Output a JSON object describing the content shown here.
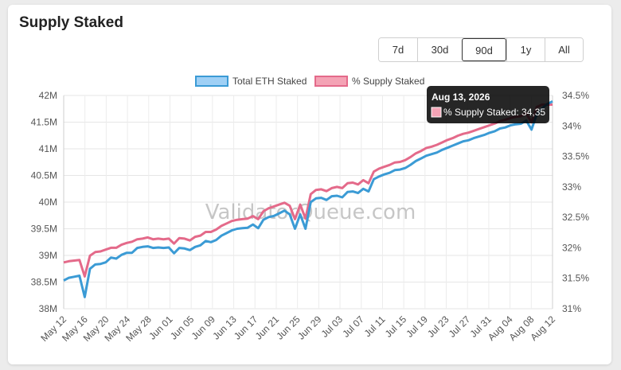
{
  "title": "Supply Staked",
  "range_buttons": [
    {
      "label": "7d",
      "active": false
    },
    {
      "label": "30d",
      "active": false
    },
    {
      "label": "90d",
      "active": true
    },
    {
      "label": "1y",
      "active": false
    },
    {
      "label": "All",
      "active": false
    }
  ],
  "watermark": "ValidatorQueue.com",
  "tooltip": {
    "title": "Aug 13, 2026",
    "body": "% Supply Staked: 34,35",
    "swatch_color": "#f4a3b5"
  },
  "chart_data": {
    "type": "line",
    "legend_position": "top",
    "grid": true,
    "x_tick_labels": [
      "May 12",
      "May 16",
      "May 20",
      "May 24",
      "May 28",
      "Jun 01",
      "Jun 05",
      "Jun 09",
      "Jun 13",
      "Jun 17",
      "Jun 21",
      "Jun 25",
      "Jun 29",
      "Jul 03",
      "Jul 07",
      "Jul 11",
      "Jul 15",
      "Jul 19",
      "Jul 23",
      "Jul 27",
      "Jul 31",
      "Aug 04",
      "Aug 08",
      "Aug 12"
    ],
    "y_left": {
      "ticks": [
        "42M",
        "41.5M",
        "41M",
        "40.5M",
        "40M",
        "39.5M",
        "39M",
        "38.5M",
        "38M"
      ],
      "ylim": [
        38.0,
        42.0
      ],
      "unit": "M"
    },
    "y_right": {
      "ticks": [
        "34.5%",
        "34%",
        "33.5%",
        "33%",
        "32.5%",
        "32%",
        "31.5%",
        "31%"
      ],
      "ylim": [
        31.0,
        34.5
      ]
    },
    "x": {
      "start": "May 12",
      "end": "Aug 13"
    },
    "series": [
      {
        "name": "Total ETH Staked",
        "axis": "left",
        "color": "#3b9bd5",
        "fill": "#9fd0f5",
        "values": [
          38.53,
          38.58,
          38.6,
          38.62,
          38.22,
          38.75,
          38.83,
          38.84,
          38.87,
          38.96,
          38.94,
          39.01,
          39.05,
          39.05,
          39.14,
          39.16,
          39.17,
          39.14,
          39.15,
          39.14,
          39.15,
          39.04,
          39.14,
          39.13,
          39.1,
          39.16,
          39.19,
          39.27,
          39.25,
          39.29,
          39.37,
          39.42,
          39.47,
          39.5,
          39.51,
          39.52,
          39.58,
          39.51,
          39.67,
          39.72,
          39.74,
          39.79,
          39.84,
          39.77,
          39.5,
          39.77,
          39.5,
          40.0,
          40.07,
          40.08,
          40.04,
          40.11,
          40.12,
          40.09,
          40.19,
          40.2,
          40.17,
          40.25,
          40.2,
          40.43,
          40.48,
          40.52,
          40.55,
          40.6,
          40.61,
          40.64,
          40.7,
          40.77,
          40.82,
          40.87,
          40.9,
          40.93,
          40.98,
          41.02,
          41.06,
          41.1,
          41.14,
          41.16,
          41.2,
          41.23,
          41.26,
          41.3,
          41.33,
          41.38,
          41.4,
          41.44,
          41.46,
          41.47,
          41.53,
          41.36,
          41.65,
          41.76,
          41.84,
          41.89
        ]
      },
      {
        "name": "% Supply Staked",
        "axis": "right",
        "color": "#e46a8a",
        "fill": "#f4a3b5",
        "values": [
          31.76,
          31.78,
          31.79,
          31.8,
          31.53,
          31.87,
          31.93,
          31.94,
          31.97,
          32.0,
          32.0,
          32.05,
          32.08,
          32.1,
          32.14,
          32.15,
          32.17,
          32.14,
          32.15,
          32.14,
          32.15,
          32.07,
          32.16,
          32.15,
          32.12,
          32.18,
          32.2,
          32.26,
          32.26,
          32.3,
          32.36,
          32.4,
          32.44,
          32.46,
          32.47,
          32.48,
          32.52,
          32.47,
          32.6,
          32.65,
          32.68,
          32.71,
          32.74,
          32.69,
          32.47,
          32.71,
          32.48,
          32.88,
          32.95,
          32.96,
          32.93,
          32.98,
          33.0,
          32.98,
          33.06,
          33.07,
          33.04,
          33.11,
          33.06,
          33.25,
          33.3,
          33.33,
          33.36,
          33.4,
          33.41,
          33.44,
          33.49,
          33.55,
          33.59,
          33.64,
          33.66,
          33.69,
          33.73,
          33.77,
          33.8,
          33.84,
          33.87,
          33.89,
          33.92,
          33.95,
          33.98,
          34.01,
          34.04,
          34.08,
          34.1,
          34.13,
          34.15,
          34.16,
          34.21,
          34.06,
          34.31,
          34.35,
          34.35,
          34.35
        ]
      }
    ]
  }
}
